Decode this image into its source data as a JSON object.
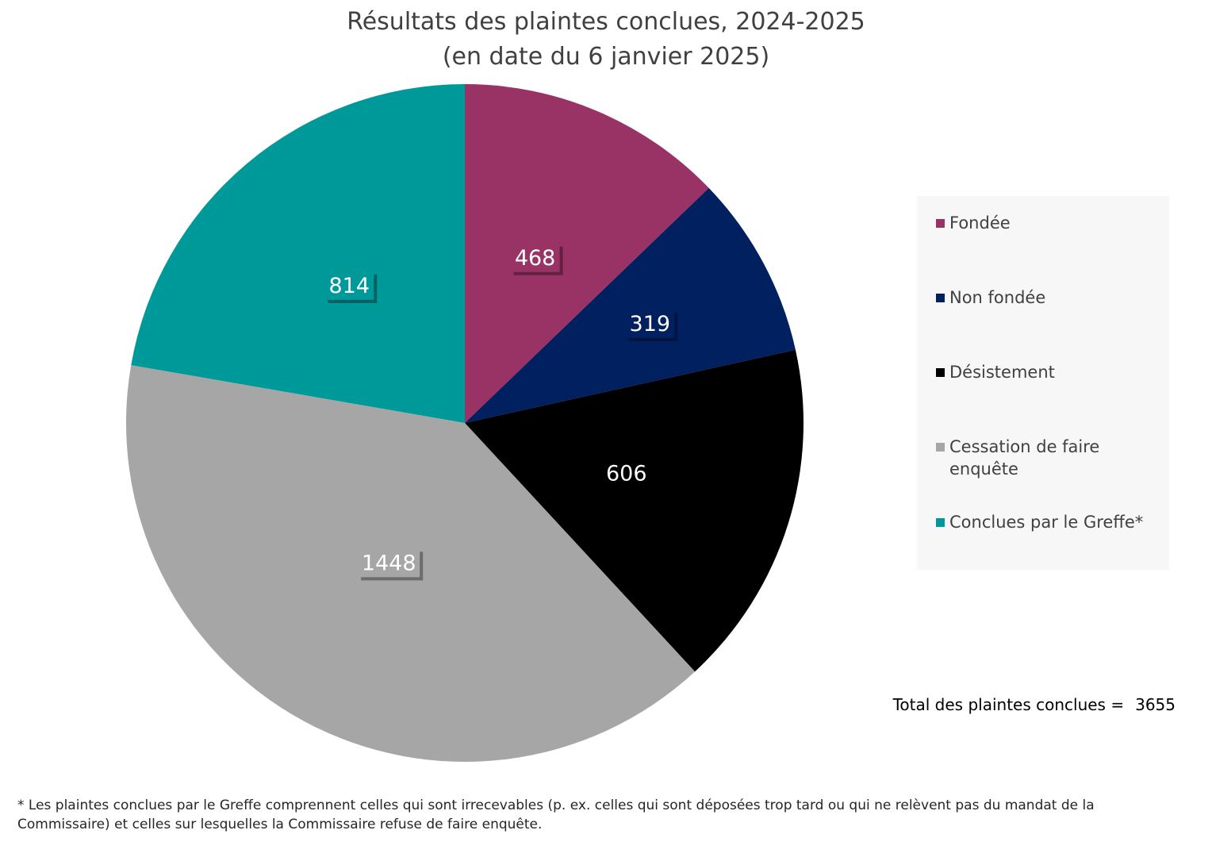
{
  "chart_data": {
    "type": "pie",
    "title": "Résultats des plaintes conclues, 2024-2025",
    "subtitle": "(en date du 6 janvier 2025)",
    "categories": [
      "Fondée",
      "Non fondée",
      "Désistement",
      "Cessation de faire enquête",
      "Conclues par le Greffe*"
    ],
    "values": [
      468,
      319,
      606,
      1448,
      814
    ],
    "colors": [
      "#993366",
      "#002060",
      "#000000",
      "#a6a6a6",
      "#009999"
    ],
    "legend_position": "right"
  },
  "total": {
    "label": "Total des plaintes conclues =",
    "value": "3655"
  },
  "footnote": "* Les plaintes conclues par le Greffe comprennent celles qui sont irrecevables (p. ex. celles qui sont déposées trop tard ou qui ne relèvent pas du mandat de la Commissaire) et celles sur lesquelles la Commissaire refuse de faire enquête."
}
